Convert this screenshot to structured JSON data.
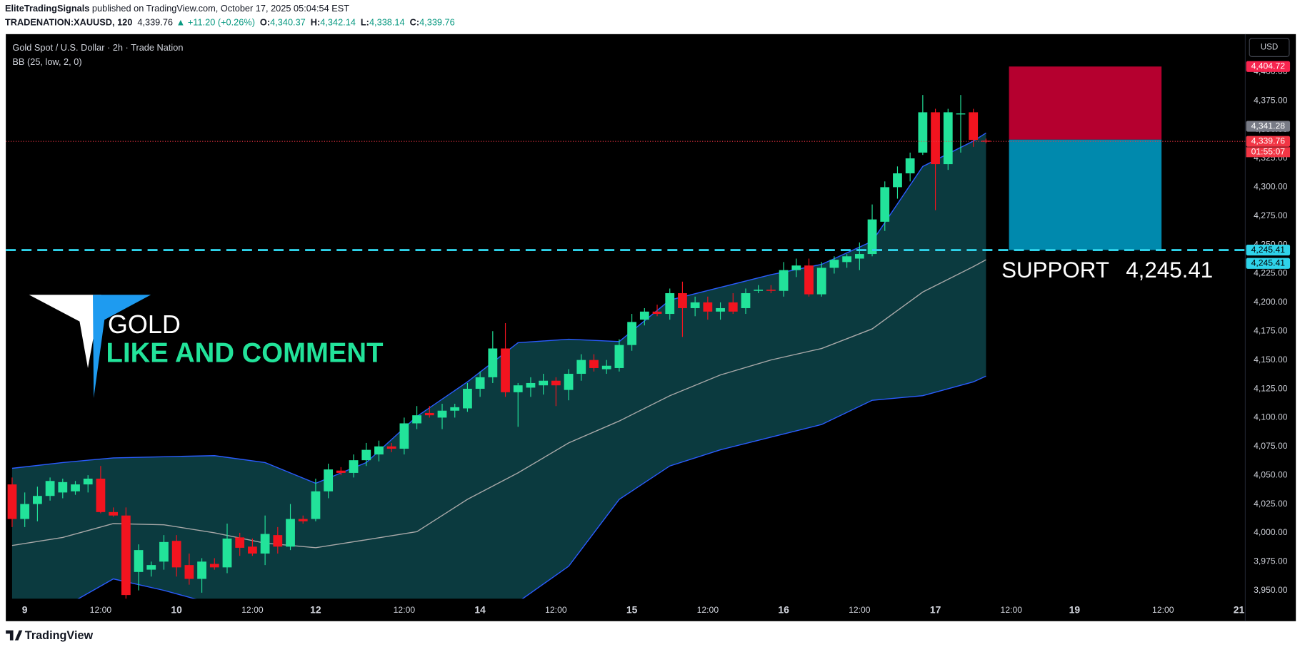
{
  "header": {
    "author": "EliteTradingSignals",
    "published": " published on TradingView.com, October 17, 2025 05:04:54 EST",
    "symbol": "TRADENATION:XAUUSD, 120",
    "last": "4,339.76",
    "change": "▲ +11.20 (+0.26%)",
    "ohlc": [
      {
        "label": "O:",
        "value": "4,340.37"
      },
      {
        "label": "H:",
        "value": "4,342.14"
      },
      {
        "label": "L:",
        "value": "4,338.14"
      },
      {
        "label": "C:",
        "value": "4,339.76"
      }
    ]
  },
  "chart_data": {
    "type": "candlestick",
    "title": "Gold Spot / U.S. Dollar · 2h · Trade Nation",
    "indicator": "BB (25, low, 2, 0)",
    "currency": "USD",
    "open": [
      4042,
      4012,
      4025,
      4032,
      4035,
      4036,
      4042,
      4047,
      4018,
      4015,
      3966,
      3968,
      3975,
      3993,
      3972,
      3960,
      3973,
      3970,
      3996,
      3988,
      3982,
      3998,
      3988,
      4012,
      4012,
      4036,
      4054,
      4052,
      4063,
      4068,
      4075,
      4073,
      4095,
      4104,
      4100,
      4106,
      4108,
      4125,
      4135,
      4160,
      4122,
      4126,
      4128,
      4132,
      4124,
      4138,
      4150,
      4142,
      4143,
      4163,
      4185,
      4192,
      4190,
      4208,
      4195,
      4200,
      4192,
      4200,
      4195,
      4210,
      4211,
      4210,
      4228,
      4232,
      4207,
      4230,
      4235,
      4238,
      4242,
      4270,
      4300,
      4312,
      4330,
      4365,
      4320,
      4364,
      4365,
      4340.37
    ],
    "high": [
      4048,
      4035,
      4040,
      4048,
      4047,
      4045,
      4050,
      4058,
      4022,
      4022,
      3990,
      3975,
      3998,
      3998,
      3982,
      3978,
      3978,
      4008,
      4000,
      3995,
      4015,
      4005,
      4025,
      4015,
      4047,
      4060,
      4057,
      4068,
      4078,
      4080,
      4078,
      4100,
      4110,
      4110,
      4112,
      4112,
      4130,
      4140,
      4175,
      4182,
      4130,
      4135,
      4138,
      4135,
      4142,
      4155,
      4155,
      4150,
      4168,
      4190,
      4195,
      4198,
      4212,
      4218,
      4205,
      4205,
      4200,
      4208,
      4212,
      4215,
      4215,
      4235,
      4238,
      4238,
      4235,
      4240,
      4242,
      4252,
      4285,
      4305,
      4318,
      4330,
      4380,
      4368,
      4368,
      4380,
      4368,
      4342.14
    ],
    "low": [
      4005,
      4005,
      4010,
      4028,
      4030,
      4033,
      4035,
      4017,
      4014,
      3942,
      3950,
      3962,
      3968,
      3962,
      3955,
      3948,
      3968,
      3965,
      3980,
      3980,
      3972,
      3982,
      3985,
      4008,
      4010,
      4030,
      4050,
      4048,
      4058,
      4062,
      4070,
      4068,
      4090,
      4100,
      4090,
      4100,
      4105,
      4118,
      4130,
      4118,
      4092,
      4118,
      4120,
      4110,
      4115,
      4132,
      4140,
      4138,
      4140,
      4158,
      4180,
      4188,
      4185,
      4170,
      4188,
      4185,
      4185,
      4190,
      4190,
      4208,
      4208,
      4205,
      4222,
      4205,
      4205,
      4225,
      4230,
      4228,
      4240,
      4262,
      4290,
      4305,
      4328,
      4280,
      4315,
      4330,
      4335,
      4338.14
    ],
    "close": [
      4012,
      4025,
      4032,
      4045,
      4044,
      4042,
      4047,
      4018,
      4015,
      3946,
      3985,
      3972,
      3992,
      3970,
      3960,
      3975,
      3970,
      3995,
      3987,
      3982,
      3999,
      3988,
      4012,
      4010,
      4036,
      4055,
      4052,
      4063,
      4072,
      4075,
      4073,
      4095,
      4102,
      4102,
      4106,
      4109,
      4125,
      4135,
      4160,
      4122,
      4128,
      4130,
      4132,
      4128,
      4138,
      4150,
      4143,
      4145,
      4163,
      4183,
      4192,
      4190,
      4208,
      4195,
      4200,
      4192,
      4195,
      4192,
      4208,
      4211,
      4210,
      4228,
      4232,
      4207,
      4230,
      4237,
      4240,
      4242,
      4272,
      4300,
      4312,
      4325,
      4365,
      4320,
      4365,
      4364,
      4341,
      4339.76
    ],
    "up_color": "#22e39a",
    "down_color": "#f2141f",
    "bands": {
      "x": [
        0,
        4,
        8,
        12,
        16,
        20,
        24,
        28,
        32,
        36,
        40,
        44,
        48,
        52,
        56,
        60,
        64,
        68,
        72,
        76,
        77
      ],
      "upper": [
        4056,
        4061,
        4065,
        4066,
        4067,
        4061,
        4043,
        4061,
        4101,
        4131,
        4165,
        4168,
        4166,
        4202,
        4213,
        4224,
        4233,
        4253,
        4318,
        4340,
        4347
      ],
      "middle": [
        3989,
        3996,
        4008,
        4007,
        4000,
        3991,
        3987,
        3994,
        4001,
        4029,
        4052,
        4078,
        4097,
        4119,
        4137,
        4150,
        4160,
        4177,
        4209,
        4231,
        4237
      ],
      "lower": [
        3920,
        3935,
        3960,
        3950,
        3938,
        3925,
        3905,
        3890,
        3885,
        3895,
        3940,
        3971,
        4029,
        4058,
        4072,
        4083,
        4094,
        4115,
        4119,
        4131,
        4136
      ],
      "fill": "#0b3a3f",
      "line_color": "#2a5cff",
      "middle_color": "#a8a8a8"
    },
    "xlim": [
      -0.5,
      97.5
    ],
    "xticks": [
      {
        "value": 1,
        "label": "9"
      },
      {
        "value": 7,
        "label": "12:00"
      },
      {
        "value": 13,
        "label": "10"
      },
      {
        "value": 19,
        "label": "12:00"
      },
      {
        "value": 24,
        "label": "12"
      },
      {
        "value": 31,
        "label": "12:00"
      },
      {
        "value": 37,
        "label": "14"
      },
      {
        "value": 43,
        "label": "12:00"
      },
      {
        "value": 49,
        "label": "15"
      },
      {
        "value": 55,
        "label": "12:00"
      },
      {
        "value": 61,
        "label": "16"
      },
      {
        "value": 67,
        "label": "12:00"
      },
      {
        "value": 73,
        "label": "17"
      },
      {
        "value": 79,
        "label": "12:00"
      },
      {
        "value": 84,
        "label": "19"
      },
      {
        "value": 91,
        "label": "12:00"
      },
      {
        "value": 97,
        "label": "21"
      }
    ],
    "ylim": [
      3942.8,
      4432.1
    ],
    "yticks": [
      {
        "value": 3950,
        "label": "3,950.00"
      },
      {
        "value": 3975,
        "label": "3,975.00"
      },
      {
        "value": 4000,
        "label": "4,000.00"
      },
      {
        "value": 4025,
        "label": "4,025.00"
      },
      {
        "value": 4050,
        "label": "4,050.00"
      },
      {
        "value": 4075,
        "label": "4,075.00"
      },
      {
        "value": 4100,
        "label": "4,100.00"
      },
      {
        "value": 4125,
        "label": "4,125.00"
      },
      {
        "value": 4150,
        "label": "4,150.00"
      },
      {
        "value": 4175,
        "label": "4,175.00"
      },
      {
        "value": 4200,
        "label": "4,200.00"
      },
      {
        "value": 4225,
        "label": "4,225.00"
      },
      {
        "value": 4250,
        "label": "4,250.00"
      },
      {
        "value": 4275,
        "label": "4,275.00"
      },
      {
        "value": 4300,
        "label": "4,300.00"
      },
      {
        "value": 4325,
        "label": "4,325.00"
      },
      {
        "value": 4350,
        "label": "4,350.00"
      },
      {
        "value": 4375,
        "label": "4,375.00"
      },
      {
        "value": 4400,
        "label": "4,400.00"
      }
    ],
    "last_price": {
      "value": 4339.76,
      "label": "4,339.76",
      "countdown": "01:55:07",
      "color": "#f23645"
    },
    "position": {
      "target": {
        "value": 4404.72,
        "label": "4,404.72",
        "color": "#b5002f"
      },
      "entry": {
        "value": 4341.28,
        "label": "4,341.28",
        "color": "#787b86"
      },
      "stop": {
        "value": 4245.41,
        "label": "4,245.41",
        "color": "#0089ad"
      }
    },
    "support": {
      "text": "SUPPORT",
      "value": 4245.41,
      "label": "4,245.41",
      "color": "#2fd3ea"
    },
    "branding": {
      "title": "GOLD",
      "subtitle": "LIKE AND COMMENT"
    }
  },
  "footer": {
    "brand": "TradingView"
  }
}
